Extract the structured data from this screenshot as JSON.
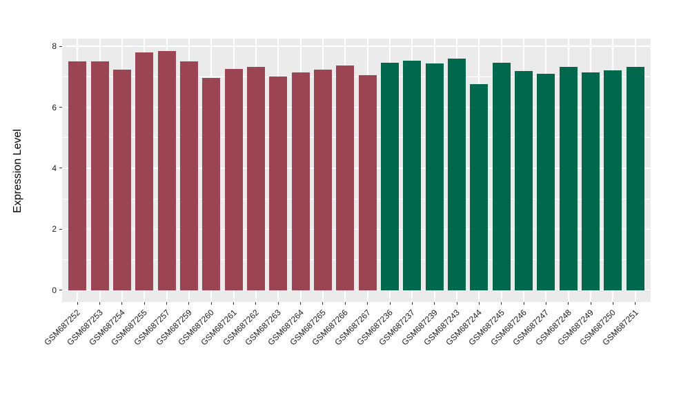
{
  "chart_data": {
    "type": "bar",
    "title": "",
    "xlabel": "",
    "ylabel": "Expression Level",
    "ylim": [
      0,
      8
    ],
    "yticks": [
      "0",
      "2",
      "4",
      "6",
      "8"
    ],
    "minor_gridlines": [
      1,
      3,
      5,
      7
    ],
    "grid": "on",
    "legend_position": "none",
    "panel_background": "#EBEBEB",
    "gridline_color": "#FFFFFF",
    "axis_text_color": "#1a1a1a",
    "group_colors": [
      "#9B4453",
      "#01684D"
    ],
    "categories": [
      "GSM687252",
      "GSM687253",
      "GSM687254",
      "GSM687255",
      "GSM687257",
      "GSM687259",
      "GSM687260",
      "GSM687261",
      "GSM687262",
      "GSM687263",
      "GSM687264",
      "GSM687265",
      "GSM687266",
      "GSM687267",
      "GSM687236",
      "GSM687237",
      "GSM687239",
      "GSM687243",
      "GSM687244",
      "GSM687245",
      "GSM687246",
      "GSM687247",
      "GSM687248",
      "GSM687249",
      "GSM687250",
      "GSM687251"
    ],
    "values": [
      7.5,
      7.5,
      7.23,
      7.8,
      7.84,
      7.51,
      6.96,
      7.27,
      7.33,
      7.0,
      7.14,
      7.24,
      7.37,
      7.06,
      7.47,
      7.52,
      7.43,
      7.6,
      6.77,
      7.46,
      7.18,
      7.11,
      7.32,
      7.15,
      7.22,
      7.33
    ],
    "groups": [
      0,
      0,
      0,
      0,
      0,
      0,
      0,
      0,
      0,
      0,
      0,
      0,
      0,
      0,
      1,
      1,
      1,
      1,
      1,
      1,
      1,
      1,
      1,
      1,
      1,
      1
    ]
  }
}
